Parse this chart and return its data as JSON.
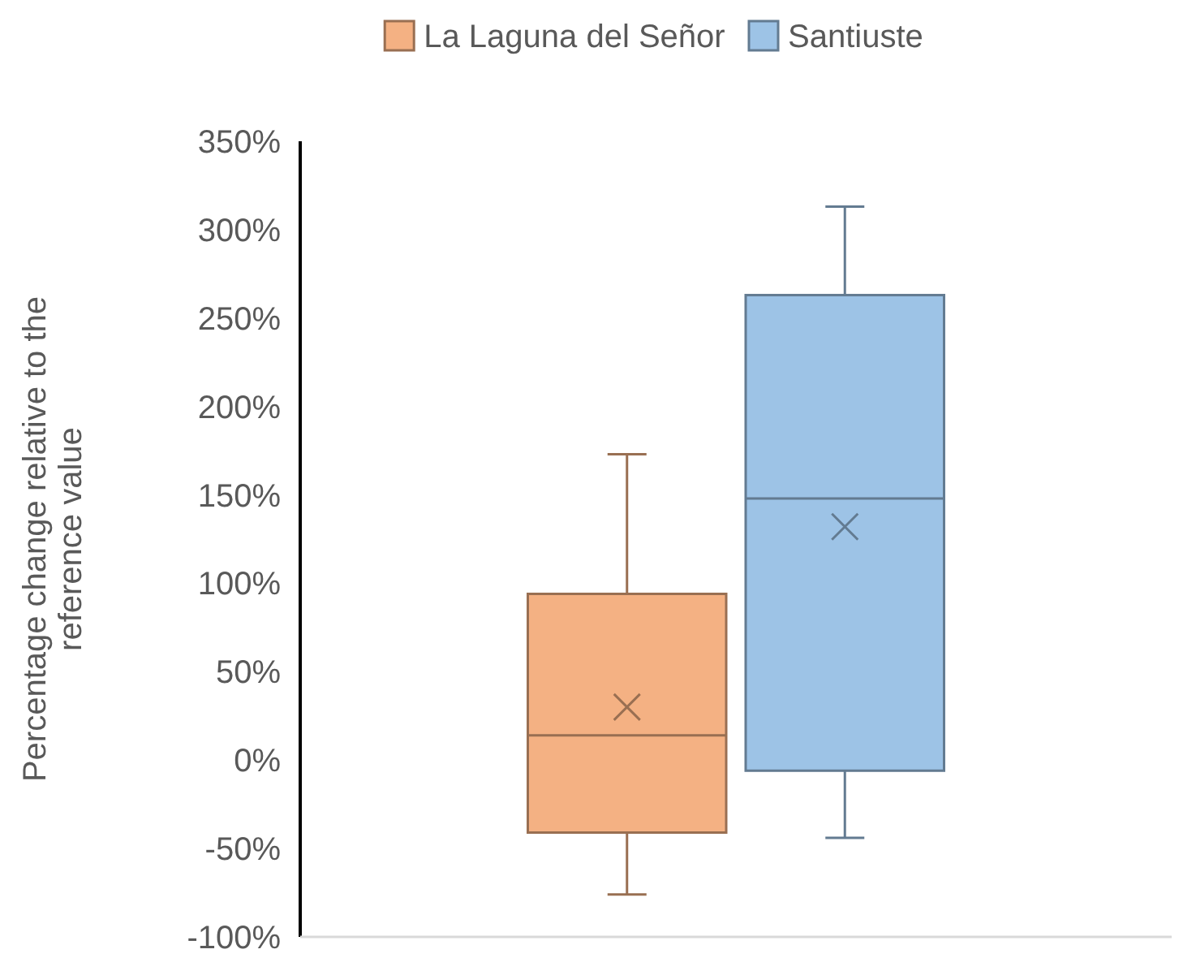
{
  "chart_data": {
    "type": "box",
    "ylabel": "Percentage change relative to the reference value",
    "categories": [
      null
    ],
    "ylim": [
      -100,
      350
    ],
    "yticks": [
      {
        "value": -100,
        "label": "-100%"
      },
      {
        "value": -50,
        "label": "-50%"
      },
      {
        "value": 0,
        "label": "0%"
      },
      {
        "value": 50,
        "label": "50%"
      },
      {
        "value": 100,
        "label": "100%"
      },
      {
        "value": 150,
        "label": "150%"
      },
      {
        "value": 200,
        "label": "200%"
      },
      {
        "value": 250,
        "label": "250%"
      },
      {
        "value": 300,
        "label": "300%"
      },
      {
        "value": 350,
        "label": "350%"
      }
    ],
    "grid": false,
    "legend": "top",
    "series": [
      {
        "name": "La Laguna del Señor",
        "color": "#f4b183",
        "boxes": [
          {
            "low": -76,
            "q1": -41,
            "median": 14,
            "q3": 94,
            "high": 173,
            "mean": 30
          }
        ]
      },
      {
        "name": "Santiuste",
        "color": "#9dc3e6",
        "boxes": [
          {
            "low": -44,
            "q1": -6,
            "median": 148,
            "q3": 263,
            "high": 313,
            "mean": 132
          }
        ]
      }
    ]
  }
}
